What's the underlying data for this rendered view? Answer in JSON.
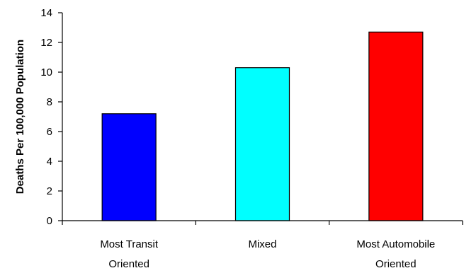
{
  "chart_data": {
    "type": "bar",
    "categories": [
      [
        "Most Transit",
        "Oriented"
      ],
      [
        "Mixed"
      ],
      [
        "Most Automobile",
        "Oriented"
      ]
    ],
    "values": [
      7.2,
      10.3,
      12.7
    ],
    "colors": [
      "#0000ff",
      "#00ffff",
      "#ff0000"
    ],
    "ylabel": "Deaths Per 100,000 Population",
    "xlabel": "",
    "ylim": [
      0,
      14
    ],
    "yticks": [
      0,
      2,
      4,
      6,
      8,
      10,
      12,
      14
    ],
    "grid": false,
    "legend": "none"
  }
}
